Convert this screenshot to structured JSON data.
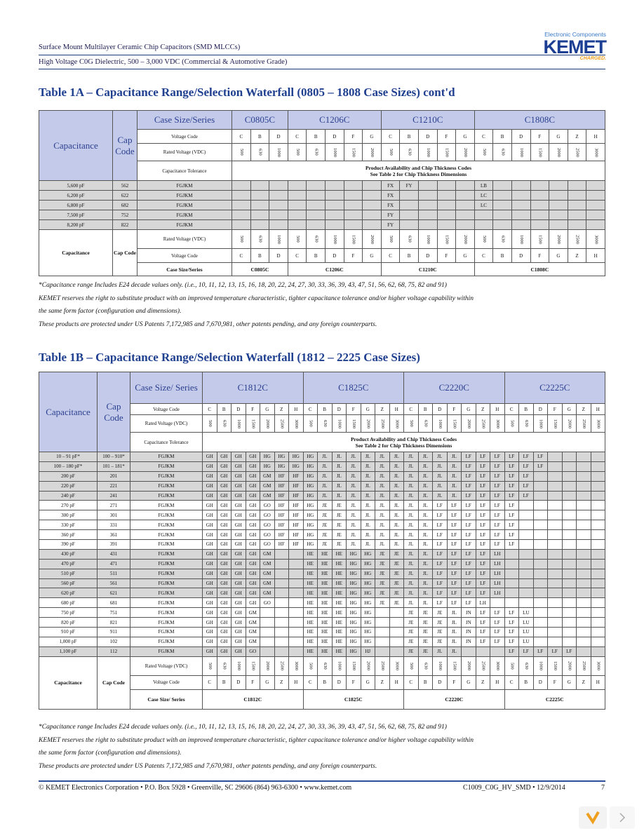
{
  "header": {
    "line1": "Surface Mount Multilayer Ceramic Chip Capacitors (SMD MLCCs)",
    "line2": "High Voltage C0G Dielectric, 500 – 3,000 VDC (Commercial & Automotive Grade)",
    "logo_top": "Electronic Components",
    "logo": "KEMET",
    "logo_tag": "CHARGED."
  },
  "table1a": {
    "title": "Table 1A – Capacitance Range/Selection Waterfall (0805 – 1808 Case Sizes) cont'd",
    "labels": {
      "capacitance": "Capacitance",
      "cap_code": "Cap Code",
      "case_size_series": "Case Size/Series",
      "voltage_code": "Voltage Code",
      "rated_voltage": "Rated Voltage (VDC)",
      "tolerance": "Capacitance Tolerance",
      "availability": "Product Availability and Chip Thickness Codes",
      "see_table": "See Table 2 for Chip Thickness Dimensions"
    },
    "cases": [
      {
        "name": "C0805C",
        "voltage_codes": [
          "C",
          "B",
          "D"
        ],
        "rated_voltages": [
          500,
          630,
          1000
        ]
      },
      {
        "name": "C1206C",
        "voltage_codes": [
          "C",
          "B",
          "D",
          "F",
          "G"
        ],
        "rated_voltages": [
          500,
          630,
          1000,
          1500,
          2000
        ]
      },
      {
        "name": "C1210C",
        "voltage_codes": [
          "C",
          "B",
          "D",
          "F",
          "G"
        ],
        "rated_voltages": [
          500,
          630,
          1000,
          1500,
          2000
        ]
      },
      {
        "name": "C1808C",
        "voltage_codes": [
          "C",
          "B",
          "D",
          "F",
          "G",
          "Z",
          "H"
        ],
        "rated_voltages": [
          500,
          630,
          1000,
          1500,
          2000,
          2500,
          3000
        ]
      }
    ],
    "rows": [
      {
        "capacitance": "5,600 pF",
        "cap_code": "562",
        "tolerance": "FGJKM",
        "cells": [
          null,
          null,
          null,
          null,
          null,
          null,
          null,
          null,
          "FX",
          "FY",
          null,
          null,
          null,
          "LB",
          null,
          null,
          null,
          null,
          null,
          null
        ]
      },
      {
        "capacitance": "6,200 pF",
        "cap_code": "622",
        "tolerance": "FGJKM",
        "cells": [
          null,
          null,
          null,
          null,
          null,
          null,
          null,
          null,
          "FX",
          null,
          null,
          null,
          null,
          "LC",
          null,
          null,
          null,
          null,
          null,
          null
        ]
      },
      {
        "capacitance": "6,800 pF",
        "cap_code": "682",
        "tolerance": "FGJKM",
        "cells": [
          null,
          null,
          null,
          null,
          null,
          null,
          null,
          null,
          "FX",
          null,
          null,
          null,
          null,
          "LC",
          null,
          null,
          null,
          null,
          null,
          null
        ]
      },
      {
        "capacitance": "7,500 pF",
        "cap_code": "752",
        "tolerance": "FGJKM",
        "cells": [
          null,
          null,
          null,
          null,
          null,
          null,
          null,
          null,
          "FY",
          null,
          null,
          null,
          null,
          null,
          null,
          null,
          null,
          null,
          null,
          null
        ]
      },
      {
        "capacitance": "8,200 pF",
        "cap_code": "822",
        "tolerance": "FGJKM",
        "cells": [
          null,
          null,
          null,
          null,
          null,
          null,
          null,
          null,
          "FY",
          null,
          null,
          null,
          null,
          null,
          null,
          null,
          null,
          null,
          null,
          null
        ]
      }
    ]
  },
  "notes_1a": [
    "*Capacitance range Includes E24 decade values only. (i.e., 10, 11, 12, 13, 15, 16, 18, 20, 22, 24, 27, 30, 33, 36, 39, 43, 47, 51, 56, 62, 68, 75, 82 and 91)",
    "KEMET reserves the right to substitute product with an improved temperature characteristic, tighter capacitance tolerance and/or higher voltage capability within",
    "the same form factor (configuration and dimensions).",
    "These products are protected under US Patents 7,172,985 and 7,670,981, other patents pending, and any foreign counterparts."
  ],
  "table1b": {
    "title": "Table 1B – Capacitance Range/Selection Waterfall (1812 – 2225 Case Sizes)",
    "labels": {
      "capacitance": "Capacitance",
      "cap_code": "Cap Code",
      "case_size_series": "Case Size/ Series",
      "voltage_code": "Voltage Code",
      "rated_voltage": "Rated Voltage (VDC)",
      "tolerance": "Capacitance Tolerance",
      "availability": "Product Availability and Chip Thickness Codes",
      "see_table": "See Table 2 for Chip Thickness Dimensions"
    },
    "cases": [
      {
        "name": "C1812C",
        "voltage_codes": [
          "C",
          "B",
          "D",
          "F",
          "G",
          "Z",
          "H"
        ],
        "rated_voltages": [
          500,
          630,
          1000,
          1500,
          2000,
          2500,
          3000
        ]
      },
      {
        "name": "C1825C",
        "voltage_codes": [
          "C",
          "B",
          "D",
          "F",
          "G",
          "Z",
          "H"
        ],
        "rated_voltages": [
          500,
          630,
          1000,
          1500,
          2000,
          2500,
          3000
        ]
      },
      {
        "name": "C2220C",
        "voltage_codes": [
          "C",
          "B",
          "D",
          "F",
          "G",
          "Z",
          "H"
        ],
        "rated_voltages": [
          500,
          630,
          1000,
          1500,
          2000,
          2500,
          3000
        ]
      },
      {
        "name": "C2225C",
        "voltage_codes": [
          "C",
          "B",
          "D",
          "F",
          "G",
          "Z",
          "H"
        ],
        "rated_voltages": [
          500,
          630,
          1000,
          1500,
          2000,
          2500,
          3000
        ]
      }
    ],
    "rows": [
      {
        "capacitance": "10 – 91 pF*",
        "cap_code": "100 – 910*",
        "tolerance": "FGJKM",
        "cells": [
          "GH",
          "GH",
          "GH",
          "GH",
          "HG",
          "HG",
          "HG",
          "HG",
          "JL",
          "JL",
          "JL",
          "JL",
          "JL",
          "JL",
          "JL",
          "JL",
          "JL",
          "JL",
          "LF",
          "LF",
          "LF",
          "LF",
          "LF",
          "LF",
          null,
          null,
          null,
          null
        ]
      },
      {
        "capacitance": "100 – 180 pF*",
        "cap_code": "101 – 181*",
        "tolerance": "FGJKM",
        "cells": [
          "GH",
          "GH",
          "GH",
          "GH",
          "HG",
          "HG",
          "HG",
          "HG",
          "JL",
          "JL",
          "JL",
          "JL",
          "JL",
          "JL",
          "JL",
          "JL",
          "JL",
          "JL",
          "LF",
          "LF",
          "LF",
          "LF",
          "LF",
          "LF",
          null,
          null,
          null,
          null
        ]
      },
      {
        "capacitance": "200 pF",
        "cap_code": "201",
        "tolerance": "FGJKM",
        "cells": [
          "GH",
          "GH",
          "GH",
          "GH",
          "GM",
          "HF",
          "HF",
          "HG",
          "JL",
          "JL",
          "JL",
          "JL",
          "JL",
          "JL",
          "JL",
          "JL",
          "JL",
          "JL",
          "LF",
          "LF",
          "LF",
          "LF",
          "LF",
          null,
          null,
          null,
          null,
          null
        ]
      },
      {
        "capacitance": "220 pF",
        "cap_code": "221",
        "tolerance": "FGJKM",
        "cells": [
          "GH",
          "GH",
          "GH",
          "GH",
          "GM",
          "HF",
          "HF",
          "HG",
          "JL",
          "JL",
          "JL",
          "JL",
          "JL",
          "JL",
          "JL",
          "JL",
          "JL",
          "JL",
          "LF",
          "LF",
          "LF",
          "LF",
          "LF",
          null,
          null,
          null,
          null,
          null
        ]
      },
      {
        "capacitance": "240 pF",
        "cap_code": "241",
        "tolerance": "FGJKM",
        "cells": [
          "GH",
          "GH",
          "GH",
          "GH",
          "GM",
          "HF",
          "HF",
          "HG",
          "JL",
          "JL",
          "JL",
          "JL",
          "JL",
          "JL",
          "JL",
          "JL",
          "JL",
          "JL",
          "LF",
          "LF",
          "LF",
          "LF",
          "LF",
          null,
          null,
          null,
          null,
          null
        ]
      },
      {
        "capacitance": "270 pF",
        "cap_code": "271",
        "tolerance": "FGJKM",
        "cells": [
          "GH",
          "GH",
          "GH",
          "GH",
          "GO",
          "HF",
          "HF",
          "HG",
          "JE",
          "JE",
          "JL",
          "JL",
          "JL",
          "JL",
          "JL",
          "JL",
          "LF",
          "LF",
          "LF",
          "LF",
          "LF",
          "LF",
          null,
          null,
          null,
          null,
          null,
          null
        ]
      },
      {
        "capacitance": "300 pF",
        "cap_code": "301",
        "tolerance": "FGJKM",
        "cells": [
          "GH",
          "GH",
          "GH",
          "GH",
          "GO",
          "HF",
          "HF",
          "HG",
          "JE",
          "JE",
          "JL",
          "JL",
          "JL",
          "JL",
          "JL",
          "JL",
          "LF",
          "LF",
          "LF",
          "LF",
          "LF",
          "LF",
          null,
          null,
          null,
          null,
          null,
          null
        ]
      },
      {
        "capacitance": "330 pF",
        "cap_code": "331",
        "tolerance": "FGJKM",
        "cells": [
          "GH",
          "GH",
          "GH",
          "GH",
          "GO",
          "HF",
          "HF",
          "HG",
          "JE",
          "JE",
          "JL",
          "JL",
          "JL",
          "JL",
          "JL",
          "JL",
          "LF",
          "LF",
          "LF",
          "LF",
          "LF",
          "LF",
          null,
          null,
          null,
          null,
          null,
          null
        ]
      },
      {
        "capacitance": "360 pF",
        "cap_code": "361",
        "tolerance": "FGJKM",
        "cells": [
          "GH",
          "GH",
          "GH",
          "GH",
          "GO",
          "HF",
          "HF",
          "HG",
          "JE",
          "JE",
          "JL",
          "JL",
          "JL",
          "JL",
          "JL",
          "JL",
          "LF",
          "LF",
          "LF",
          "LF",
          "LF",
          "LF",
          null,
          null,
          null,
          null,
          null,
          null
        ]
      },
      {
        "capacitance": "390 pF",
        "cap_code": "391",
        "tolerance": "FGJKM",
        "cells": [
          "GH",
          "GH",
          "GH",
          "GH",
          "GO",
          "HF",
          "HF",
          "HG",
          "JE",
          "JE",
          "JL",
          "JL",
          "JL",
          "JL",
          "JL",
          "JL",
          "LF",
          "LF",
          "LF",
          "LF",
          "LF",
          "LF",
          null,
          null,
          null,
          null,
          null,
          null
        ]
      },
      {
        "capacitance": "430 pF",
        "cap_code": "431",
        "tolerance": "FGJKM",
        "cells": [
          "GH",
          "GH",
          "GH",
          "GH",
          "GM",
          null,
          null,
          "HE",
          "HE",
          "HE",
          "HG",
          "HG",
          "JE",
          "JE",
          "JL",
          "JL",
          "LF",
          "LF",
          "LF",
          "LF",
          "LH",
          null,
          null,
          null,
          null,
          null,
          null,
          null
        ]
      },
      {
        "capacitance": "470 pF",
        "cap_code": "471",
        "tolerance": "FGJKM",
        "cells": [
          "GH",
          "GH",
          "GH",
          "GH",
          "GM",
          null,
          null,
          "HE",
          "HE",
          "HE",
          "HG",
          "HG",
          "JE",
          "JE",
          "JL",
          "JL",
          "LF",
          "LF",
          "LF",
          "LF",
          "LH",
          null,
          null,
          null,
          null,
          null,
          null,
          null
        ]
      },
      {
        "capacitance": "510 pF",
        "cap_code": "511",
        "tolerance": "FGJKM",
        "cells": [
          "GH",
          "GH",
          "GH",
          "GH",
          "GM",
          null,
          null,
          "HE",
          "HE",
          "HE",
          "HG",
          "HG",
          "JE",
          "JE",
          "JL",
          "JL",
          "LF",
          "LF",
          "LF",
          "LF",
          "LH",
          null,
          null,
          null,
          null,
          null,
          null,
          null
        ]
      },
      {
        "capacitance": "560 pF",
        "cap_code": "561",
        "tolerance": "FGJKM",
        "cells": [
          "GH",
          "GH",
          "GH",
          "GH",
          "GM",
          null,
          null,
          "HE",
          "HE",
          "HE",
          "HG",
          "HG",
          "JE",
          "JE",
          "JL",
          "JL",
          "LF",
          "LF",
          "LF",
          "LF",
          "LH",
          null,
          null,
          null,
          null,
          null,
          null,
          null
        ]
      },
      {
        "capacitance": "620 pF",
        "cap_code": "621",
        "tolerance": "FGJKM",
        "cells": [
          "GH",
          "GH",
          "GH",
          "GH",
          "GM",
          null,
          null,
          "HE",
          "HE",
          "HE",
          "HG",
          "HG",
          "JE",
          "JE",
          "JL",
          "JL",
          "LF",
          "LF",
          "LF",
          "LF",
          "LH",
          null,
          null,
          null,
          null,
          null,
          null,
          null
        ]
      },
      {
        "capacitance": "680 pF",
        "cap_code": "681",
        "tolerance": "FGJKM",
        "cells": [
          "GH",
          "GH",
          "GH",
          "GH",
          "GO",
          null,
          null,
          "HE",
          "HE",
          "HE",
          "HG",
          "HG",
          "JE",
          "JE",
          "JL",
          "JL",
          "LF",
          "LF",
          "LF",
          "LH",
          null,
          null,
          null,
          null,
          null,
          null,
          null,
          null
        ]
      },
      {
        "capacitance": "750 pF",
        "cap_code": "751",
        "tolerance": "FGJKM",
        "cells": [
          "GH",
          "GH",
          "GH",
          "GM",
          null,
          null,
          null,
          "HE",
          "HE",
          "HE",
          "HG",
          "HG",
          null,
          null,
          "JE",
          "JE",
          "JE",
          "JL",
          "JN",
          "LF",
          "LF",
          "LF",
          "LU",
          null,
          null,
          null,
          null,
          null
        ]
      },
      {
        "capacitance": "820 pF",
        "cap_code": "821",
        "tolerance": "FGJKM",
        "cells": [
          "GH",
          "GH",
          "GH",
          "GM",
          null,
          null,
          null,
          "HE",
          "HE",
          "HE",
          "HG",
          "HG",
          null,
          null,
          "JE",
          "JE",
          "JE",
          "JL",
          "JN",
          "LF",
          "LF",
          "LF",
          "LU",
          null,
          null,
          null,
          null,
          null
        ]
      },
      {
        "capacitance": "910 pF",
        "cap_code": "911",
        "tolerance": "FGJKM",
        "cells": [
          "GH",
          "GH",
          "GH",
          "GM",
          null,
          null,
          null,
          "HE",
          "HE",
          "HE",
          "HG",
          "HG",
          null,
          null,
          "JE",
          "JE",
          "JE",
          "JL",
          "JN",
          "LF",
          "LF",
          "LF",
          "LU",
          null,
          null,
          null,
          null,
          null
        ]
      },
      {
        "capacitance": "1,000 pF",
        "cap_code": "102",
        "tolerance": "FGJKM",
        "cells": [
          "GH",
          "GH",
          "GH",
          "GM",
          null,
          null,
          null,
          "HE",
          "HE",
          "HE",
          "HG",
          "HG",
          null,
          null,
          "JE",
          "JE",
          "JE",
          "JL",
          "JN",
          "LF",
          "LF",
          "LF",
          "LU",
          null,
          null,
          null,
          null,
          null
        ]
      },
      {
        "capacitance": "1,100 pF",
        "cap_code": "112",
        "tolerance": "FGJKM",
        "cells": [
          "GH",
          "GH",
          "GH",
          "GO",
          null,
          null,
          null,
          "HE",
          "HE",
          "HE",
          "HG",
          "HJ",
          null,
          null,
          "JE",
          "JE",
          "JL",
          "JL",
          null,
          null,
          null,
          "LF",
          "LF",
          "LF",
          "LF",
          "LF",
          null,
          null
        ]
      }
    ]
  },
  "notes_1b": [
    "*Capacitance range Includes E24 decade values only. (i.e., 10, 11, 12, 13, 15, 16, 18, 20, 22, 24, 27, 30, 33, 36, 39, 43, 47, 51, 56, 62, 68, 75, 82 and 91)",
    "KEMET reserves the right to substitute product with an improved temperature characteristic, tighter capacitance tolerance and/or higher voltage capability within",
    "the same form factor (configuration and dimensions).",
    "These products are protected under US Patents 7,172,985 and 7,670,981, other patents pending, and any foreign counterparts."
  ],
  "footer": {
    "left": "© KEMET Electronics Corporation • P.O. Box 5928 • Greenville, SC 29606 (864) 963-6300 • www.kemet.com",
    "doc": "C1009_C0G_HV_SMD • 12/9/2014",
    "page": "7"
  }
}
